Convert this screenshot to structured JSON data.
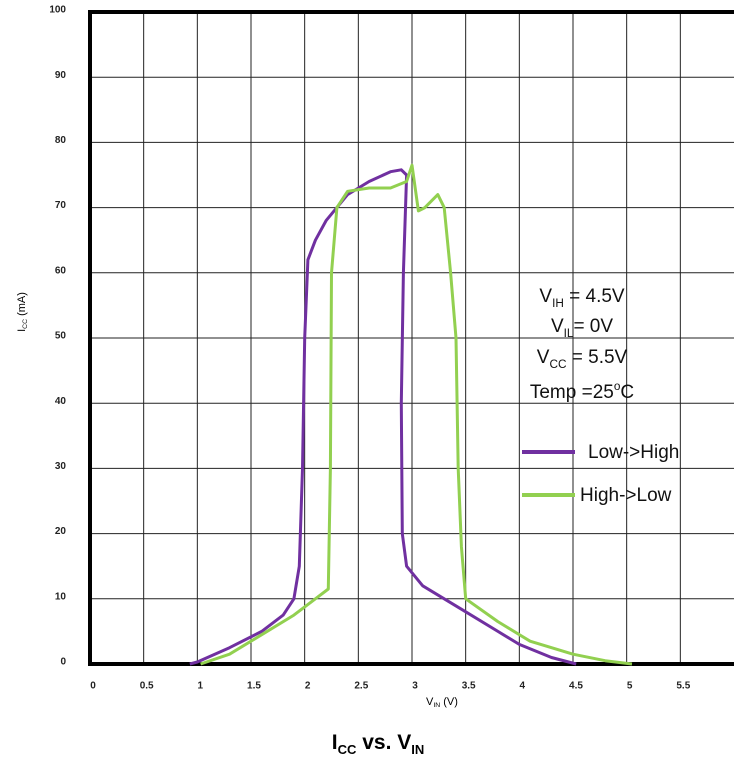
{
  "chart_data": {
    "type": "line",
    "title": [
      "I",
      "CC",
      " vs. V",
      "IN"
    ],
    "y_label": [
      "I",
      "CC",
      " (mA)"
    ],
    "x_label": [
      "V",
      "IN",
      " (V)"
    ],
    "xlim": [
      0,
      6
    ],
    "ylim": [
      0,
      100
    ],
    "xticks": [
      0,
      0.5,
      1,
      1.5,
      2,
      2.5,
      3,
      3.5,
      4,
      4.5,
      5,
      5.5
    ],
    "yticks": [
      0,
      10,
      20,
      30,
      40,
      50,
      60,
      70,
      80,
      90,
      100
    ],
    "grid": true,
    "annotations": [
      [
        "V",
        "IH",
        " = 4.5V"
      ],
      [
        "V",
        "IL",
        "= 0V"
      ],
      [
        "V",
        "CC",
        " = 5.5V"
      ],
      [
        "Temp =25",
        "o",
        "C"
      ]
    ],
    "series": [
      {
        "name": "Low->High",
        "color": "#7030a0",
        "x": [
          0.93,
          1.0,
          1.3,
          1.6,
          1.8,
          1.9,
          1.95,
          1.98,
          2.0,
          2.03,
          2.1,
          2.2,
          2.4,
          2.6,
          2.8,
          2.9,
          2.95,
          2.92,
          2.9,
          2.91,
          2.95,
          3.1,
          3.3,
          3.5,
          3.8,
          4.0,
          4.3,
          4.53
        ],
        "values": [
          0,
          0.3,
          2.5,
          5,
          7.5,
          10,
          15,
          30,
          50,
          62,
          65,
          68,
          72,
          74,
          75.5,
          75.8,
          75,
          60,
          40,
          20,
          15,
          12,
          10,
          8,
          5,
          3,
          1,
          0
        ]
      },
      {
        "name": "High->Low",
        "color": "#92d050",
        "x": [
          1.03,
          1.3,
          1.6,
          1.9,
          2.1,
          2.22,
          2.24,
          2.25,
          2.3,
          2.4,
          2.6,
          2.8,
          2.95,
          3.0,
          3.06,
          3.12,
          3.24,
          3.3,
          3.36,
          3.41,
          3.43,
          3.46,
          3.5,
          3.8,
          4.1,
          4.5,
          4.8,
          5.05
        ],
        "values": [
          0,
          1.5,
          4.5,
          7.5,
          10,
          11.5,
          30,
          60,
          70,
          72.5,
          73,
          73,
          74,
          76.5,
          69.5,
          70,
          72,
          70,
          60,
          50,
          30,
          18,
          10,
          6.5,
          3.5,
          1.5,
          0.5,
          0
        ]
      }
    ],
    "legend": "right"
  }
}
